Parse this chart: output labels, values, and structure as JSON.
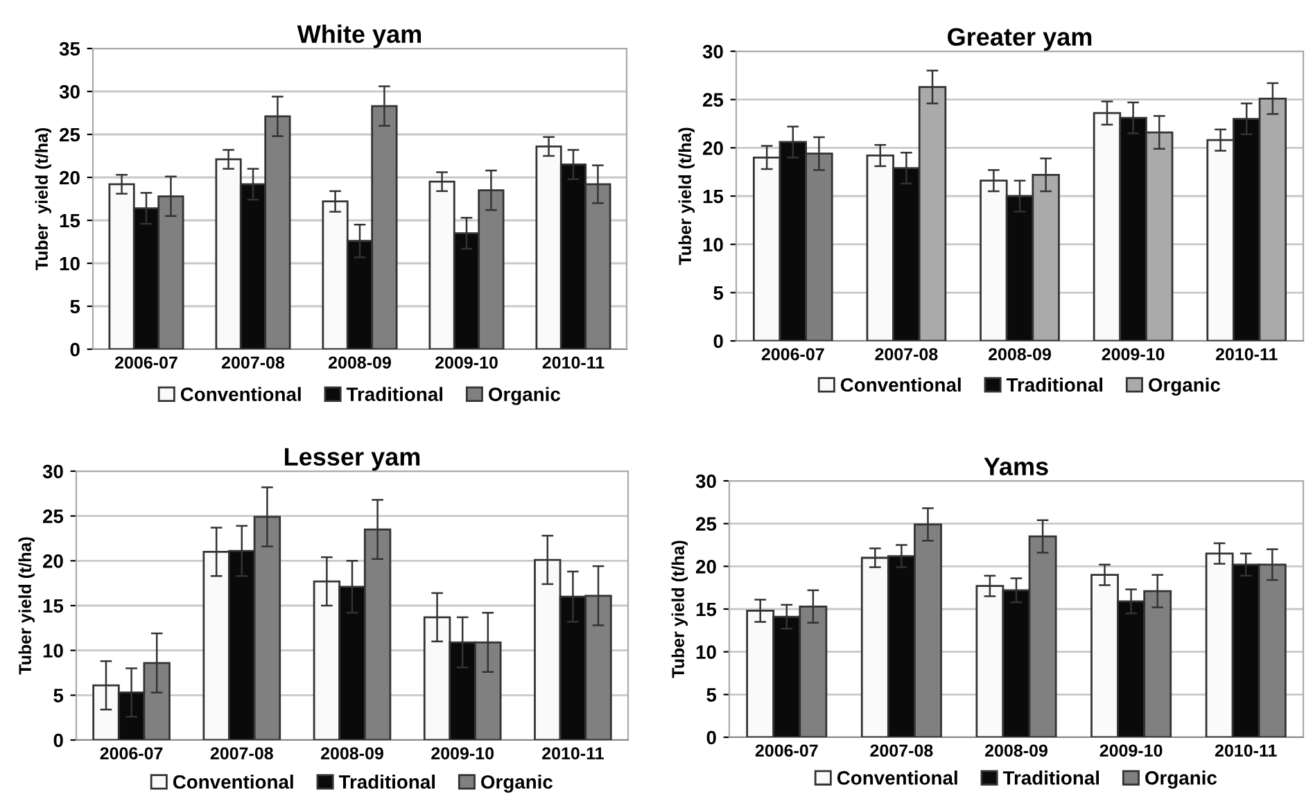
{
  "chart_data": [
    {
      "type": "bar",
      "title": "White yam",
      "ylabel": "Tuber  yield (t/ha)",
      "categories": [
        "2006-07",
        "2007-08",
        "2008-09",
        "2009-10",
        "2010-11"
      ],
      "ylim": [
        0,
        35
      ],
      "yticks": [
        0,
        5,
        10,
        15,
        20,
        25,
        30,
        35
      ],
      "grid": "y",
      "legend": "bottom",
      "series": [
        {
          "name": "Conventional",
          "color": "#fafafa",
          "values": [
            19.2,
            22.1,
            17.2,
            19.5,
            23.6
          ],
          "errors": [
            1.1,
            1.1,
            1.2,
            1.1,
            1.1
          ]
        },
        {
          "name": "Traditional",
          "color": "#0a0a0a",
          "values": [
            16.4,
            19.2,
            12.6,
            13.5,
            21.5
          ],
          "errors": [
            1.8,
            1.8,
            1.9,
            1.8,
            1.7
          ]
        },
        {
          "name": "Organic",
          "color": "#808080",
          "values": [
            17.8,
            27.1,
            28.3,
            18.5,
            19.2
          ],
          "errors": [
            2.3,
            2.3,
            2.3,
            2.3,
            2.2
          ]
        }
      ]
    },
    {
      "type": "bar",
      "title": "Greater yam",
      "ylabel": "Tuber yield (t/ha)",
      "categories": [
        "2006-07",
        "2007-08",
        "2008-09",
        "2009-10",
        "2010-11"
      ],
      "ylim": [
        0,
        30
      ],
      "yticks": [
        0,
        5,
        10,
        15,
        20,
        25,
        30
      ],
      "grid": "y",
      "legend": "bottom",
      "series": [
        {
          "name": "Conventional",
          "color": "#fafafa",
          "values": [
            19.0,
            19.2,
            16.6,
            23.6,
            20.8
          ],
          "errors": [
            1.2,
            1.1,
            1.1,
            1.2,
            1.1
          ]
        },
        {
          "name": "Traditional",
          "color": "#0a0a0a",
          "values": [
            20.6,
            17.9,
            15.0,
            23.1,
            23.0
          ],
          "errors": [
            1.6,
            1.6,
            1.6,
            1.6,
            1.6
          ]
        },
        {
          "name": "Organic",
          "color": "#aaaaaa",
          "colors": [
            "#7f7f7f",
            "#aaaaaa",
            "#aaaaaa",
            "#aaaaaa",
            "#aaaaaa"
          ],
          "values": [
            19.4,
            26.3,
            17.2,
            21.6,
            25.1
          ],
          "errors": [
            1.7,
            1.7,
            1.7,
            1.7,
            1.6
          ]
        }
      ]
    },
    {
      "type": "bar",
      "title": "Lesser yam",
      "ylabel": "Tuber yield (t/ha)",
      "categories": [
        "2006-07",
        "2007-08",
        "2008-09",
        "2009-10",
        "2010-11"
      ],
      "ylim": [
        0,
        30
      ],
      "yticks": [
        0,
        5,
        10,
        15,
        20,
        25,
        30
      ],
      "grid": "y",
      "legend": "bottom",
      "series": [
        {
          "name": "Conventional",
          "color": "#fafafa",
          "values": [
            6.1,
            21.0,
            17.7,
            13.7,
            20.1
          ],
          "errors": [
            2.7,
            2.7,
            2.7,
            2.7,
            2.7
          ]
        },
        {
          "name": "Traditional",
          "color": "#0a0a0a",
          "values": [
            5.3,
            21.1,
            17.1,
            10.9,
            16.0
          ],
          "errors": [
            2.7,
            2.8,
            2.9,
            2.8,
            2.8
          ]
        },
        {
          "name": "Organic",
          "color": "#808080",
          "values": [
            8.6,
            24.9,
            23.5,
            10.9,
            16.1
          ],
          "errors": [
            3.3,
            3.3,
            3.3,
            3.3,
            3.3
          ]
        }
      ]
    },
    {
      "type": "bar",
      "title": "Yams",
      "ylabel": "Tuber yield (t/ha)",
      "categories": [
        "2006-07",
        "2007-08",
        "2008-09",
        "2009-10",
        "2010-11"
      ],
      "ylim": [
        0,
        30
      ],
      "yticks": [
        0,
        5,
        10,
        15,
        20,
        25,
        30
      ],
      "grid": "y",
      "legend": "bottom",
      "series": [
        {
          "name": "Conventional",
          "color": "#fafafa",
          "values": [
            14.8,
            21.0,
            17.7,
            19.0,
            21.5
          ],
          "errors": [
            1.3,
            1.1,
            1.2,
            1.2,
            1.2
          ]
        },
        {
          "name": "Traditional",
          "color": "#0a0a0a",
          "values": [
            14.1,
            21.2,
            17.2,
            15.9,
            20.2
          ],
          "errors": [
            1.4,
            1.3,
            1.4,
            1.4,
            1.3
          ]
        },
        {
          "name": "Organic",
          "color": "#808080",
          "values": [
            15.3,
            24.9,
            23.5,
            17.1,
            20.2
          ],
          "errors": [
            1.9,
            1.9,
            1.9,
            1.9,
            1.8
          ]
        }
      ]
    }
  ]
}
